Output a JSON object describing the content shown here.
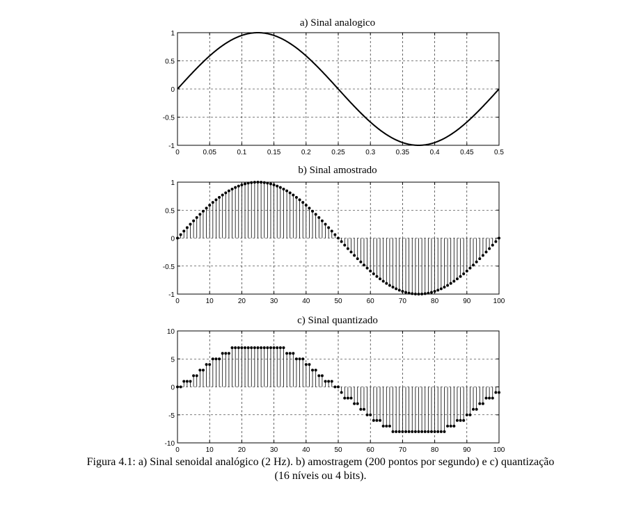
{
  "chart_data": [
    {
      "type": "line",
      "title": "a) Sinal analogico",
      "xlim": [
        0,
        0.5
      ],
      "ylim": [
        -1,
        1
      ],
      "xticks": [
        0,
        0.05,
        0.1,
        0.15,
        0.2,
        0.25,
        0.3,
        0.35,
        0.4,
        0.45,
        0.5
      ],
      "xtick_labels": [
        "0",
        "0.05",
        "0.1",
        "0.15",
        "0.2",
        "0.25",
        "0.3",
        "0.35",
        "0.4",
        "0.45",
        "0.5"
      ],
      "yticks": [
        1,
        0.5,
        0,
        -0.5,
        -1
      ],
      "ytick_labels": [
        "1",
        "0.5",
        "0",
        "-0.5",
        "-1"
      ],
      "grid": true,
      "signal": {
        "amplitude": 1,
        "frequency_hz": 2
      }
    },
    {
      "type": "stem",
      "title": "b) Sinal amostrado",
      "xlim": [
        0,
        100
      ],
      "ylim": [
        -1,
        1
      ],
      "xticks": [
        0,
        10,
        20,
        30,
        40,
        50,
        60,
        70,
        80,
        90,
        100
      ],
      "xtick_labels": [
        "0",
        "10",
        "20",
        "30",
        "40",
        "50",
        "60",
        "70",
        "80",
        "90",
        "100"
      ],
      "yticks": [
        1,
        0.5,
        0,
        -0.5,
        -1
      ],
      "ytick_labels": [
        "1",
        "0.5",
        "0",
        "-0.5",
        "-1"
      ],
      "grid": true,
      "samples": {
        "count": 101,
        "samples_per_second": 200,
        "amplitude": 1,
        "frequency_hz": 2
      }
    },
    {
      "type": "stem",
      "title": "c) Sinal quantizado",
      "xlim": [
        0,
        100
      ],
      "ylim": [
        -10,
        10
      ],
      "xticks": [
        0,
        10,
        20,
        30,
        40,
        50,
        60,
        70,
        80,
        90,
        100
      ],
      "xtick_labels": [
        "0",
        "10",
        "20",
        "30",
        "40",
        "50",
        "60",
        "70",
        "80",
        "90",
        "100"
      ],
      "yticks": [
        10,
        5,
        0,
        -5,
        -10
      ],
      "ytick_labels": [
        "10",
        "5",
        "0",
        "-5",
        "-10"
      ],
      "grid": true,
      "quantization": {
        "levels": 16,
        "min_level": -8,
        "max_level": 7,
        "scale": 8
      }
    }
  ],
  "caption": {
    "line1": "Figura 4.1: a) Sinal senoidal analógico (2 Hz). b) amostragem (200 pontos por segundo) e c) quantização",
    "line2": "(16 níveis ou 4 bits)."
  }
}
